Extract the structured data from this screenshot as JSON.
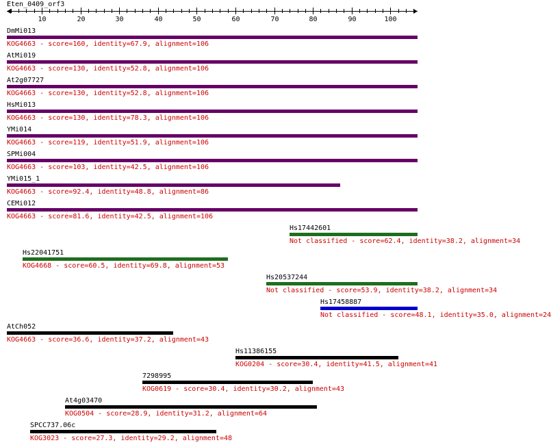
{
  "title": "Eten_0409_orf3",
  "ruler": {
    "min": 1,
    "max": 106,
    "ticks": [
      "10",
      "20",
      "30",
      "40",
      "50",
      "60",
      "70",
      "80",
      "90",
      "100"
    ]
  },
  "colors": {
    "purple": "#660066",
    "green": "#1e6e1e",
    "blue": "#0000cc",
    "black": "#000000",
    "text_red": "#cc0000"
  },
  "hits": [
    {
      "name": "DmMi013",
      "desc": "KOG4663 - score=160, identity=67.9, alignment=106",
      "start": 1,
      "end": 106,
      "color": "purple"
    },
    {
      "name": "AtMi019",
      "desc": "KOG4663 - score=130, identity=52.8, alignment=106",
      "start": 1,
      "end": 106,
      "color": "purple"
    },
    {
      "name": "At2g07727",
      "desc": "KOG4663 - score=130, identity=52.8, alignment=106",
      "start": 1,
      "end": 106,
      "color": "purple"
    },
    {
      "name": "HsMi013",
      "desc": "KOG4663 - score=130, identity=78.3, alignment=106",
      "start": 1,
      "end": 106,
      "color": "purple"
    },
    {
      "name": "YMi014",
      "desc": "KOG4663 - score=119, identity=51.9, alignment=106",
      "start": 1,
      "end": 106,
      "color": "purple"
    },
    {
      "name": "SPMi004",
      "desc": "KOG4663 - score=103, identity=42.5, alignment=106",
      "start": 1,
      "end": 106,
      "color": "purple"
    },
    {
      "name": "YMi015_1",
      "desc": "KOG4663 - score=92.4, identity=48.8, alignment=86",
      "start": 1,
      "end": 86,
      "color": "purple"
    },
    {
      "name": "CEMi012",
      "desc": "KOG4663 - score=81.6, identity=42.5, alignment=106",
      "start": 1,
      "end": 106,
      "color": "purple"
    },
    {
      "name": "Hs17442601",
      "desc": "Not classified - score=62.4, identity=38.2, alignment=34",
      "start": 74,
      "end": 106,
      "color": "green"
    },
    {
      "name": "Hs22041751",
      "desc": "KOG4668 - score=60.5, identity=69.8, alignment=53",
      "start": 5,
      "end": 57,
      "color": "green"
    },
    {
      "name": "Hs20537244",
      "desc": "Not classified - score=53.9, identity=38.2, alignment=34",
      "start": 68,
      "end": 106,
      "color": "green"
    },
    {
      "name": "Hs17458887",
      "desc": "Not classified - score=48.1, identity=35.0, alignment=24",
      "start": 82,
      "end": 106,
      "color": "blue"
    },
    {
      "name": "AtCh052",
      "desc": "KOG4663 - score=36.6, identity=37.2, alignment=43",
      "start": 1,
      "end": 43,
      "color": "black"
    },
    {
      "name": "Hs11386155",
      "desc": "KOG0204 - score=30.4, identity=41.5, alignment=41",
      "start": 60,
      "end": 101,
      "color": "black"
    },
    {
      "name": "7298995",
      "desc": "KOG0619 - score=30.4, identity=30.2, alignment=43",
      "start": 36,
      "end": 79,
      "color": "black"
    },
    {
      "name": "At4g03470",
      "desc": "KOG0504 - score=28.9, identity=31.2, alignment=64",
      "start": 16,
      "end": 80,
      "color": "black"
    },
    {
      "name": "SPCC737.06c",
      "desc": "KOG3023 - score=27.3, identity=29.2, alignment=48",
      "start": 7,
      "end": 54,
      "color": "black"
    }
  ]
}
